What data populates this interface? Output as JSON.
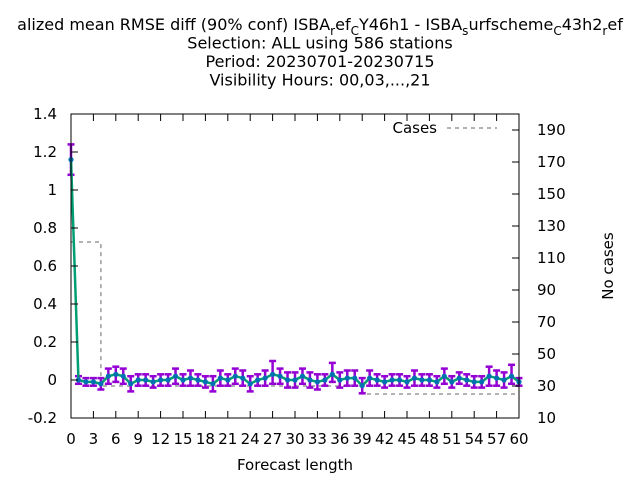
{
  "chart_data": {
    "type": "line",
    "title_lines": [
      {
        "segments": [
          {
            "text": "alized mean RMSE diff (90% conf) ISBA",
            "shift": "base"
          },
          {
            "text": "r",
            "shift": "sub"
          },
          {
            "text": "ef",
            "shift": "base"
          },
          {
            "text": "C",
            "shift": "sub"
          },
          {
            "text": "Y46h1 - ISBA",
            "shift": "base"
          },
          {
            "text": "s",
            "shift": "sub"
          },
          {
            "text": "urfscheme",
            "shift": "base"
          },
          {
            "text": "C",
            "shift": "sub"
          },
          {
            "text": "43h2",
            "shift": "base"
          },
          {
            "text": "r",
            "shift": "sub"
          },
          {
            "text": "ef",
            "shift": "base"
          }
        ]
      },
      {
        "text": "Selection: ALL using   586 stations"
      },
      {
        "text": "Period: 20230701-20230715"
      },
      {
        "text": "Visibility   Hours:  00,03,...,21"
      }
    ],
    "xlabel": "Forecast length",
    "ylabel": "",
    "y2label": "No cases",
    "xlim": [
      0,
      60
    ],
    "ylim": [
      -0.2,
      1.4
    ],
    "y2lim": [
      10,
      200
    ],
    "xticks": [
      0,
      3,
      6,
      9,
      12,
      15,
      18,
      21,
      24,
      27,
      30,
      33,
      36,
      39,
      42,
      45,
      48,
      51,
      54,
      57,
      60
    ],
    "yticks": [
      "-0.2",
      "0",
      "0.2",
      "0.4",
      "0.6",
      "0.8",
      "1",
      "1.2",
      "1.4"
    ],
    "y2ticks": [
      10,
      30,
      50,
      70,
      90,
      110,
      130,
      150,
      170,
      190
    ],
    "legend": {
      "position": "top-right",
      "entries": [
        {
          "name": "Cases",
          "color": "#999999",
          "style": "dashed"
        }
      ]
    },
    "grid": false,
    "colors": {
      "errorbar": "#9400d3",
      "line": "#009e73",
      "marker": "#0072b2",
      "cases": "#999999"
    },
    "series": [
      {
        "role": "score",
        "x": [
          0,
          1,
          2,
          3,
          4,
          5,
          6,
          7,
          8,
          9,
          10,
          11,
          12,
          13,
          14,
          15,
          16,
          17,
          18,
          19,
          20,
          21,
          22,
          23,
          24,
          25,
          26,
          27,
          28,
          29,
          30,
          31,
          32,
          33,
          34,
          35,
          36,
          37,
          38,
          39,
          40,
          41,
          42,
          43,
          44,
          45,
          46,
          47,
          48,
          49,
          50,
          51,
          52,
          53,
          54,
          55,
          56,
          57,
          58,
          59,
          60
        ],
        "values": [
          1.16,
          0.0,
          -0.01,
          -0.01,
          -0.02,
          0.02,
          0.03,
          0.02,
          -0.02,
          0.0,
          0.0,
          -0.01,
          0.0,
          0.0,
          0.02,
          0.0,
          0.01,
          0.0,
          -0.01,
          -0.02,
          0.01,
          0.0,
          0.02,
          0.01,
          -0.02,
          0.0,
          0.01,
          0.03,
          0.02,
          0.0,
          0.0,
          0.02,
          0.0,
          -0.01,
          0.0,
          0.03,
          0.0,
          0.01,
          0.01,
          -0.03,
          0.01,
          0.0,
          -0.01,
          0.0,
          0.0,
          -0.01,
          0.01,
          0.0,
          0.0,
          -0.01,
          0.02,
          -0.01,
          0.01,
          0.0,
          -0.01,
          -0.01,
          0.02,
          0.01,
          0.0,
          0.02,
          -0.01
        ],
        "err_low": [
          1.08,
          -0.02,
          -0.03,
          -0.03,
          -0.05,
          -0.02,
          -0.01,
          -0.02,
          -0.06,
          -0.03,
          -0.03,
          -0.04,
          -0.03,
          -0.03,
          -0.02,
          -0.03,
          -0.03,
          -0.03,
          -0.04,
          -0.06,
          -0.03,
          -0.03,
          -0.02,
          -0.03,
          -0.06,
          -0.03,
          -0.03,
          -0.02,
          -0.02,
          -0.04,
          -0.04,
          -0.02,
          -0.04,
          -0.05,
          -0.03,
          -0.01,
          -0.04,
          -0.03,
          -0.03,
          -0.07,
          -0.03,
          -0.03,
          -0.04,
          -0.03,
          -0.03,
          -0.04,
          -0.03,
          -0.03,
          -0.03,
          -0.04,
          -0.02,
          -0.04,
          -0.02,
          -0.03,
          -0.04,
          -0.04,
          -0.03,
          -0.03,
          -0.04,
          -0.02,
          -0.03
        ],
        "err_high": [
          1.24,
          0.02,
          0.01,
          0.01,
          0.01,
          0.06,
          0.07,
          0.06,
          0.02,
          0.03,
          0.03,
          0.02,
          0.03,
          0.03,
          0.06,
          0.03,
          0.05,
          0.03,
          0.02,
          0.02,
          0.05,
          0.03,
          0.06,
          0.05,
          0.02,
          0.03,
          0.05,
          0.1,
          0.06,
          0.04,
          0.04,
          0.06,
          0.04,
          0.03,
          0.03,
          0.09,
          0.04,
          0.05,
          0.05,
          0.01,
          0.05,
          0.03,
          0.02,
          0.03,
          0.03,
          0.02,
          0.05,
          0.03,
          0.03,
          0.02,
          0.06,
          0.02,
          0.04,
          0.03,
          0.02,
          0.02,
          0.07,
          0.05,
          0.04,
          0.08,
          0.01
        ]
      },
      {
        "role": "cases",
        "name": "Cases",
        "x": [
          0,
          1,
          2,
          3,
          4,
          5,
          6,
          7,
          8,
          9,
          10,
          11,
          12,
          13,
          14,
          15,
          16,
          17,
          18,
          19,
          20,
          21,
          22,
          23,
          24,
          25,
          26,
          27,
          28,
          29,
          30,
          31,
          32,
          33,
          34,
          35,
          36,
          37,
          38,
          39,
          40,
          41,
          42,
          43,
          44,
          45,
          46,
          47,
          48,
          49,
          50,
          51,
          52,
          53,
          54,
          55,
          56,
          57,
          58,
          59,
          60
        ],
        "values": [
          120,
          120,
          120,
          120,
          30,
          30,
          30,
          30,
          30,
          30,
          30,
          30,
          30,
          30,
          30,
          30,
          30,
          30,
          30,
          30,
          30,
          30,
          30,
          30,
          30,
          30,
          30,
          30,
          30,
          30,
          30,
          30,
          30,
          30,
          30,
          30,
          30,
          30,
          30,
          25,
          25,
          25,
          25,
          25,
          25,
          25,
          25,
          25,
          25,
          25,
          25,
          25,
          25,
          25,
          25,
          25,
          25,
          25,
          25,
          25,
          25
        ]
      }
    ]
  }
}
